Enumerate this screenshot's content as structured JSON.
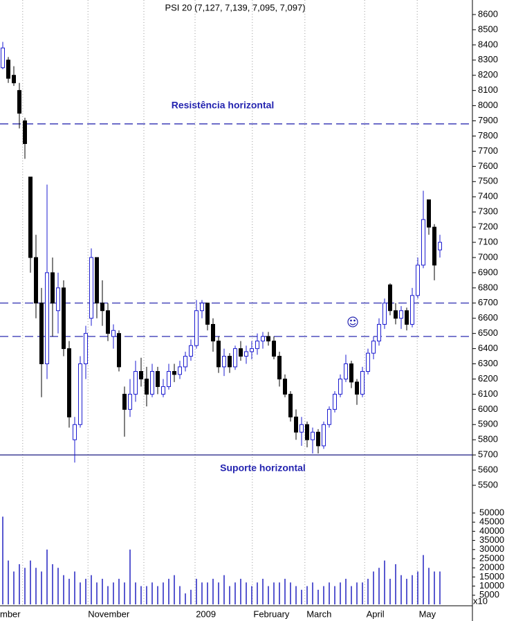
{
  "chart_data": {
    "type": "candlestick",
    "title": "PSI 20 (7,127, 7,139, 7,095, 7,097)",
    "annotations": [
      "Resistência horizontal",
      "Suporte horizontal"
    ],
    "up_color": "#1a1ad0",
    "down_color": "#000000",
    "ylim": [
      5400,
      8650
    ],
    "yticks": [
      5500,
      5600,
      5700,
      5800,
      5900,
      6000,
      6100,
      6200,
      6300,
      6400,
      6500,
      6600,
      6700,
      6800,
      6900,
      7000,
      7100,
      7200,
      7300,
      7400,
      7500,
      7600,
      7700,
      7800,
      7900,
      8000,
      8100,
      8200,
      8300,
      8400,
      8500,
      8600
    ],
    "levels": [
      {
        "value": 7880,
        "style": "dashed"
      },
      {
        "value": 6700,
        "style": "dashed"
      },
      {
        "value": 6480,
        "style": "dashed"
      },
      {
        "value": 5700,
        "style": "solid"
      }
    ],
    "xticks": [
      {
        "value": -0.5,
        "label": "mber"
      },
      {
        "value": 15.4,
        "label": "November"
      },
      {
        "value": 34.9,
        "label": "2009"
      },
      {
        "value": 45.3,
        "label": "February"
      },
      {
        "value": 54.9,
        "label": "March"
      },
      {
        "value": 65.7,
        "label": "April"
      },
      {
        "value": 75.2,
        "label": "May"
      }
    ],
    "xgrid": [
      3.6,
      15.4,
      25.5,
      34.75,
      45.1,
      54.6,
      65.4,
      74.9
    ],
    "ohlc": [
      [
        8250,
        8420,
        8240,
        8380
      ],
      [
        8300,
        8320,
        8150,
        8180
      ],
      [
        8200,
        8260,
        8130,
        8150
      ],
      [
        8100,
        8150,
        7850,
        7950
      ],
      [
        7900,
        7920,
        7650,
        7750
      ],
      [
        7530,
        7530,
        6900,
        7000
      ],
      [
        7000,
        7150,
        6600,
        6700
      ],
      [
        6700,
        6800,
        6080,
        6300
      ],
      [
        6300,
        7480,
        6200,
        6900
      ],
      [
        6900,
        7000,
        6480,
        6700
      ],
      [
        6650,
        6900,
        6500,
        6800
      ],
      [
        6800,
        6850,
        6350,
        6400
      ],
      [
        6400,
        6450,
        5880,
        5950
      ],
      [
        5800,
        5950,
        5650,
        5900
      ],
      [
        5900,
        6350,
        5880,
        6300
      ],
      [
        6300,
        6550,
        6200,
        6500
      ],
      [
        6600,
        7060,
        6550,
        7000
      ],
      [
        7000,
        7000,
        6600,
        6700
      ],
      [
        6700,
        6850,
        6550,
        6650
      ],
      [
        6650,
        6700,
        6450,
        6500
      ],
      [
        6480,
        6560,
        6400,
        6520
      ],
      [
        6500,
        6520,
        6250,
        6280
      ],
      [
        6100,
        6150,
        5820,
        6000
      ],
      [
        6000,
        6200,
        5950,
        6100
      ],
      [
        6100,
        6320,
        6050,
        6250
      ],
      [
        6250,
        6340,
        6150,
        6200
      ],
      [
        6200,
        6280,
        6020,
        6100
      ],
      [
        6100,
        6300,
        6080,
        6250
      ],
      [
        6250,
        6280,
        6100,
        6150
      ],
      [
        6100,
        6200,
        6080,
        6150
      ],
      [
        6150,
        6300,
        6130,
        6250
      ],
      [
        6250,
        6300,
        6180,
        6230
      ],
      [
        6230,
        6320,
        6200,
        6280
      ],
      [
        6280,
        6380,
        6250,
        6350
      ],
      [
        6350,
        6460,
        6320,
        6420
      ],
      [
        6420,
        6720,
        6400,
        6650
      ],
      [
        6650,
        6720,
        6600,
        6700
      ],
      [
        6700,
        6700,
        6520,
        6560
      ],
      [
        6560,
        6600,
        6380,
        6450
      ],
      [
        6450,
        6480,
        6240,
        6280
      ],
      [
        6280,
        6400,
        6220,
        6350
      ],
      [
        6350,
        6370,
        6240,
        6280
      ],
      [
        6280,
        6420,
        6260,
        6400
      ],
      [
        6400,
        6450,
        6320,
        6350
      ],
      [
        6350,
        6420,
        6300,
        6380
      ],
      [
        6380,
        6450,
        6330,
        6400
      ],
      [
        6400,
        6500,
        6360,
        6450
      ],
      [
        6450,
        6510,
        6400,
        6480
      ],
      [
        6480,
        6510,
        6420,
        6450
      ],
      [
        6450,
        6480,
        6330,
        6350
      ],
      [
        6350,
        6380,
        6150,
        6200
      ],
      [
        6200,
        6230,
        6080,
        6100
      ],
      [
        6100,
        6120,
        5920,
        5950
      ],
      [
        5950,
        6000,
        5800,
        5850
      ],
      [
        5850,
        5950,
        5760,
        5900
      ],
      [
        5900,
        5920,
        5750,
        5800
      ],
      [
        5800,
        5880,
        5710,
        5850
      ],
      [
        5850,
        5870,
        5710,
        5760
      ],
      [
        5760,
        5920,
        5740,
        5900
      ],
      [
        5900,
        6020,
        5880,
        6000
      ],
      [
        6000,
        6120,
        5980,
        6100
      ],
      [
        6100,
        6230,
        6080,
        6200
      ],
      [
        6200,
        6360,
        6180,
        6300
      ],
      [
        6300,
        6320,
        6140,
        6180
      ],
      [
        6180,
        6200,
        6030,
        6100
      ],
      [
        6100,
        6280,
        6080,
        6250
      ],
      [
        6250,
        6400,
        6230,
        6370
      ],
      [
        6370,
        6480,
        6330,
        6450
      ],
      [
        6450,
        6600,
        6420,
        6560
      ],
      [
        6560,
        6730,
        6530,
        6700
      ],
      [
        6820,
        6830,
        6620,
        6650
      ],
      [
        6650,
        6700,
        6560,
        6600
      ],
      [
        6600,
        6680,
        6530,
        6650
      ],
      [
        6650,
        6670,
        6520,
        6560
      ],
      [
        6560,
        6800,
        6540,
        6750
      ],
      [
        6750,
        7000,
        6730,
        6950
      ],
      [
        6950,
        7440,
        6930,
        7250
      ],
      [
        7380,
        7380,
        7150,
        7200
      ],
      [
        7200,
        7220,
        6850,
        6950
      ],
      [
        7050,
        7150,
        7000,
        7100
      ]
    ],
    "volume": {
      "color": "#2020c0",
      "scale_label": "x10",
      "ylim": [
        0,
        50000
      ],
      "yticks": [
        5000,
        10000,
        15000,
        20000,
        25000,
        30000,
        35000,
        40000,
        45000,
        50000
      ],
      "values": [
        48000,
        24000,
        18000,
        22000,
        20000,
        24000,
        20000,
        18000,
        30000,
        22000,
        20000,
        16000,
        14000,
        18000,
        12000,
        14000,
        16000,
        12000,
        14000,
        10000,
        12000,
        14000,
        12000,
        30000,
        12000,
        10000,
        10000,
        12000,
        10000,
        12000,
        14000,
        16000,
        10000,
        6000,
        8000,
        14000,
        12000,
        12000,
        14000,
        12000,
        16000,
        10000,
        12000,
        14000,
        12000,
        10000,
        12000,
        14000,
        10000,
        12000,
        12000,
        14000,
        12000,
        10000,
        8000,
        10000,
        12000,
        8000,
        10000,
        12000,
        10000,
        12000,
        14000,
        10000,
        12000,
        12000,
        14000,
        18000,
        20000,
        24000,
        14000,
        22000,
        16000,
        14000,
        16000,
        18000,
        27000,
        20000,
        18000,
        18000
      ]
    }
  }
}
